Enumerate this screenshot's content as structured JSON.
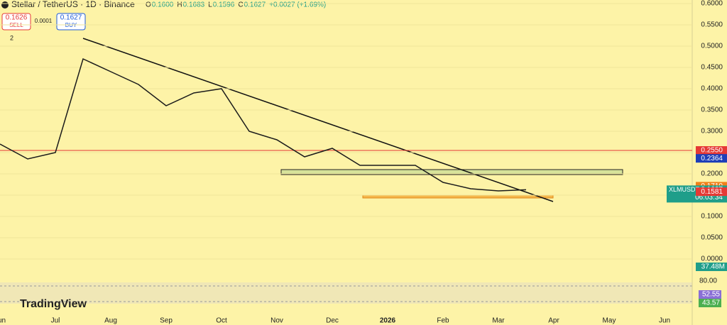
{
  "header": {
    "symbol": "Stellar / TetherUS · 1D · Binance",
    "ohlc": [
      {
        "label": "O",
        "value": "0.1600"
      },
      {
        "label": "H",
        "value": "0.1683"
      },
      {
        "label": "L",
        "value": "0.1596"
      },
      {
        "label": "C",
        "value": "0.1627"
      }
    ],
    "change": "+0.0027 (+1.69%)",
    "sell_price": "0.1626",
    "sell": "SELL",
    "spread": "0.0001",
    "buy_price": "0.1627",
    "buy": "BUY",
    "indicators": "2",
    "logo": "TradingView"
  },
  "chart_data": {
    "type": "line",
    "categories": [
      "Jun",
      null,
      "Jul",
      null,
      "Aug",
      null,
      "Sep",
      null,
      "Oct",
      null,
      "Nov",
      null,
      "Dec",
      null,
      "2026",
      null,
      "Feb",
      null,
      "Mar",
      null,
      "Apr",
      null,
      "May",
      null,
      "Jun"
    ],
    "series": [
      {
        "name": "XLMUSDT",
        "color": "#1b1b1b",
        "values": [
          0.27,
          0.235,
          0.25,
          0.47,
          0.44,
          0.41,
          0.36,
          0.39,
          0.4,
          0.3,
          0.28,
          0.24,
          0.26,
          0.22,
          0.22,
          0.22,
          0.18,
          0.165,
          0.16,
          0.1627,
          null,
          null,
          null,
          null,
          null
        ]
      }
    ],
    "ylim": [
      0,
      0.6
    ],
    "yticks": [
      {
        "value": 0.6,
        "label": "0.6000"
      },
      {
        "value": 0.55,
        "label": "0.5500"
      },
      {
        "value": 0.5,
        "label": "0.5000"
      },
      {
        "value": 0.45,
        "label": "0.4500"
      },
      {
        "value": 0.4,
        "label": "0.4000"
      },
      {
        "value": 0.35,
        "label": "0.3500"
      },
      {
        "value": 0.3,
        "label": "0.3000"
      },
      {
        "value": 0.25,
        "label": "0.2500"
      },
      {
        "value": 0.2,
        "label": "0.2000"
      },
      {
        "value": 0.15,
        "label": "0.1500"
      },
      {
        "value": 0.1,
        "label": "0.1000"
      },
      {
        "value": 0.05,
        "label": "0.0500"
      },
      {
        "value": 0,
        "label": "0.0000"
      }
    ],
    "price_tags": [
      {
        "value": 0.255,
        "label": "0.2550",
        "color": "#e53935"
      },
      {
        "value": 0.2364,
        "label": "0.2364",
        "color": "#1e3fb8"
      },
      {
        "value": 0.171,
        "label": "0.1710",
        "color": "#f0811a"
      },
      {
        "value": 0.1627,
        "label": "0.1627",
        "symbol": "XLMUSDT",
        "countdown": "06:03:34",
        "color": "#1f9e8a"
      },
      {
        "value": 0.1581,
        "label": "0.1581",
        "color": "#e53935"
      }
    ],
    "hline": {
      "value": 0.255,
      "color": "#e53935"
    },
    "volume_label": "37.48M",
    "rsi": {
      "level": "80.00",
      "value": "52.55",
      "ma": "43.57"
    }
  }
}
